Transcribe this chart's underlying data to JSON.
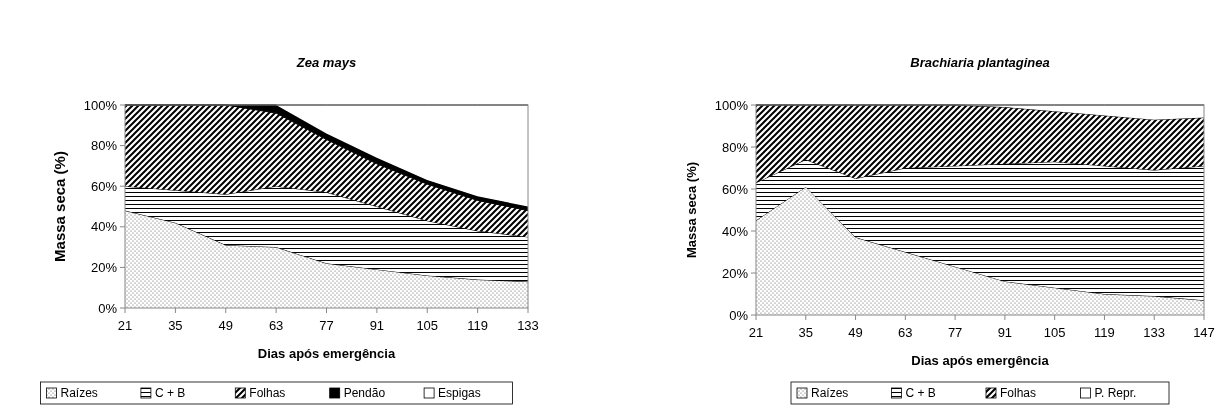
{
  "chart_data": [
    {
      "type": "area",
      "stacked": true,
      "title": "Zea mays",
      "xlabel": "Dias após emergência",
      "ylabel": "Massa seca (%)",
      "x": [
        21,
        35,
        49,
        63,
        77,
        91,
        105,
        119,
        133
      ],
      "xlim": [
        21,
        133
      ],
      "xticks": [
        21,
        35,
        49,
        63,
        77,
        91,
        105,
        119,
        133
      ],
      "ylim": [
        0,
        100
      ],
      "yticks": [
        {
          "value": 0,
          "label": "0%"
        },
        {
          "value": 20,
          "label": "20%"
        },
        {
          "value": 40,
          "label": "40%"
        },
        {
          "value": 60,
          "label": "60%"
        },
        {
          "value": 80,
          "label": "80%"
        },
        {
          "value": 100,
          "label": "100%"
        }
      ],
      "grid": false,
      "legend": "bottom",
      "series": [
        {
          "name": "Raízes",
          "color": "#555555",
          "values": [
            48,
            42,
            31,
            30,
            22,
            19,
            16,
            14,
            13
          ]
        },
        {
          "name": "C + B",
          "color": "#000000",
          "values": [
            12,
            16,
            25,
            30,
            35,
            31,
            27,
            24,
            22
          ]
        },
        {
          "name": "Folhas",
          "color": "#000000",
          "values": [
            40,
            42,
            44,
            36,
            26,
            21,
            18,
            15,
            13
          ]
        },
        {
          "name": "Pendão",
          "color": "#000000",
          "values": [
            0,
            0,
            0,
            4,
            3,
            3,
            2,
            2,
            2
          ]
        },
        {
          "name": "Espigas",
          "color": "#ffffff",
          "values": [
            0,
            0,
            0,
            0,
            14,
            26,
            37,
            45,
            50
          ]
        }
      ]
    },
    {
      "type": "area",
      "stacked": true,
      "title": "Brachiaria plantaginea",
      "xlabel": "Dias após emergência",
      "ylabel": "Massa seca (%)",
      "x": [
        21,
        35,
        49,
        63,
        77,
        91,
        105,
        119,
        133,
        147
      ],
      "xlim": [
        21,
        147
      ],
      "xticks": [
        21,
        35,
        49,
        63,
        77,
        91,
        105,
        119,
        133,
        147
      ],
      "ylim": [
        0,
        100
      ],
      "yticks": [
        {
          "value": 0,
          "label": "0%"
        },
        {
          "value": 20,
          "label": "20%"
        },
        {
          "value": 40,
          "label": "40%"
        },
        {
          "value": 60,
          "label": "60%"
        },
        {
          "value": 80,
          "label": "80%"
        },
        {
          "value": 100,
          "label": "100%"
        }
      ],
      "grid": false,
      "legend": "bottom",
      "series": [
        {
          "name": "Raízes",
          "color": "#555555",
          "values": [
            45,
            61,
            37,
            30,
            23,
            16,
            13,
            10,
            9,
            7
          ]
        },
        {
          "name": "C + B",
          "color": "#000000",
          "values": [
            18,
            13,
            28,
            40,
            48,
            56,
            60,
            61,
            60,
            64
          ]
        },
        {
          "name": "Folhas",
          "color": "#000000",
          "values": [
            37,
            26,
            35,
            30,
            29,
            27,
            24,
            24,
            24,
            23
          ]
        },
        {
          "name": "P. Repr.",
          "color": "#ffffff",
          "values": [
            0,
            0,
            0,
            0,
            0,
            1,
            3,
            5,
            7,
            6
          ]
        }
      ]
    }
  ]
}
